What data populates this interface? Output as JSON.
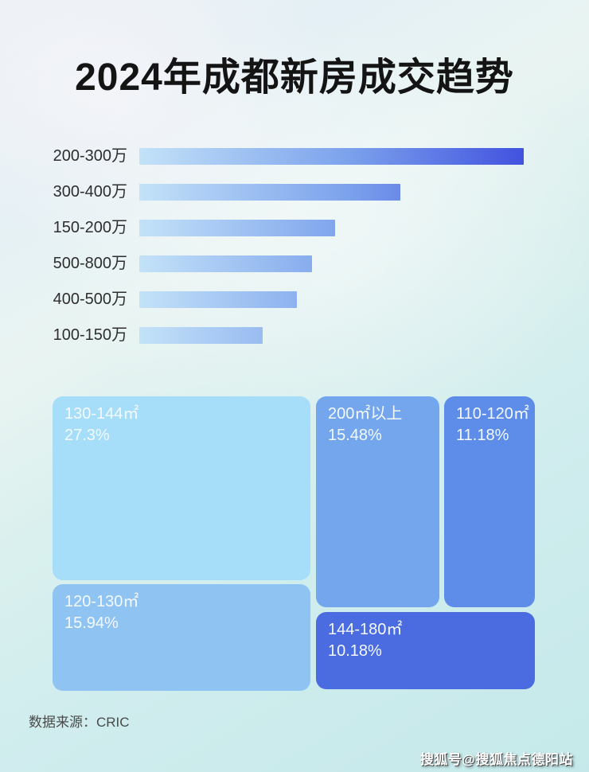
{
  "title": "2024年成都新房成交趋势",
  "source": "数据来源：CRIC",
  "watermark": "搜狐号@搜狐焦点德阳站",
  "colors": {
    "title_text": "#141414",
    "bar_label_text": "#2e2e2e",
    "bar_gradient_start": "#c3e2f8",
    "bar_gradient_end": "#4252df",
    "block_130_144": "#a6def9",
    "block_120_130": "#8fc3f1",
    "block_200_plus": "#74a6ed",
    "block_110_120": "#5d8de8",
    "block_144_180": "#4a6ce0",
    "block_text": "#f4f9fd",
    "source_text": "#4a4a4a",
    "watermark_text": "#ffffff"
  },
  "chart_data": [
    {
      "type": "bar",
      "orientation": "horizontal",
      "title": "",
      "xlabel": "",
      "ylabel": "",
      "grid": false,
      "legend": false,
      "categories": [
        "200-300万",
        "300-400万",
        "150-200万",
        "500-800万",
        "400-500万",
        "100-150万"
      ],
      "values_relative": [
        100,
        68,
        51,
        45,
        41,
        32
      ],
      "value_note": "Bars carry no numeric labels in the image; values are estimated bar lengths as a percent of the longest bar (200-300万 = 100)."
    },
    {
      "type": "treemap",
      "title": "",
      "unit": "%",
      "items": [
        {
          "label": "130-144㎡",
          "value_pct": 27.3,
          "display": "27.3%"
        },
        {
          "label": "120-130㎡",
          "value_pct": 15.94,
          "display": "15.94%"
        },
        {
          "label": "200㎡以上",
          "value_pct": 15.48,
          "display": "15.48%"
        },
        {
          "label": "110-120㎡",
          "value_pct": 11.18,
          "display": "11.18%"
        },
        {
          "label": "144-180㎡",
          "value_pct": 10.18,
          "display": "10.18%"
        }
      ]
    }
  ]
}
